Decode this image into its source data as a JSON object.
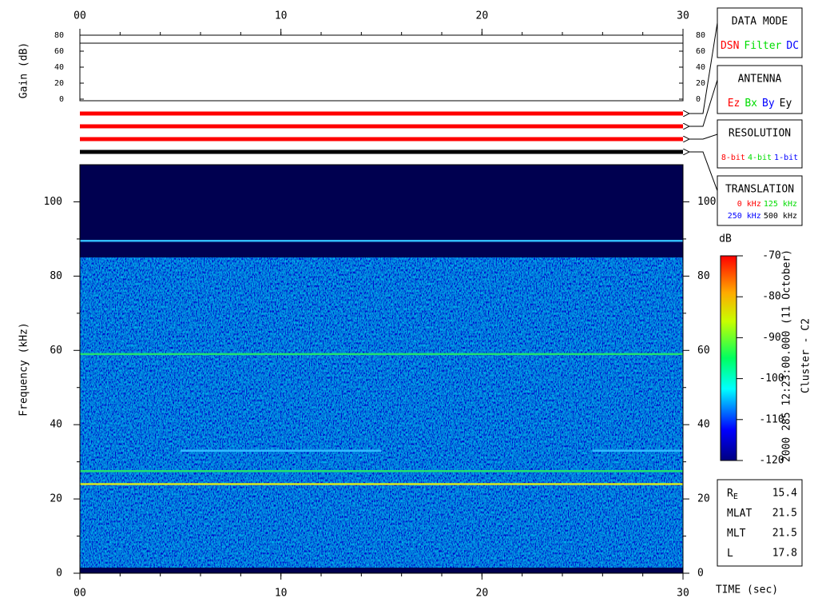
{
  "chart_data": [
    {
      "type": "line",
      "ylabel": "Gain (dB)",
      "xlim": [
        0,
        30
      ],
      "xticks": [
        {
          "value": 0,
          "label": "00"
        },
        10,
        20,
        30
      ],
      "ylim": [
        0,
        80
      ],
      "yticks": [
        0,
        20,
        40,
        60,
        80
      ],
      "series": [
        {
          "color": "#000000",
          "x": [
            0,
            30
          ],
          "values": [
            70,
            70
          ]
        }
      ]
    },
    {
      "type": "status-bars",
      "colors": [
        "#ff0000",
        "#ff0000",
        "#ff0000",
        "#000000"
      ]
    },
    {
      "type": "spectrogram",
      "xlabel": "TIME (sec)",
      "ylabel": "Frequency (kHz)",
      "xlim": [
        0,
        30
      ],
      "xticks": [
        {
          "value": 0,
          "label": "00"
        },
        10,
        20,
        30
      ],
      "ylim": [
        0,
        110
      ],
      "yticks": [
        0,
        20,
        40,
        60,
        80,
        100
      ],
      "lines": [
        {
          "y": 89.5,
          "color": "#33bbff",
          "x": [
            0,
            30
          ]
        },
        {
          "y": 59,
          "color": "#22e070",
          "x": [
            0,
            30
          ]
        },
        {
          "y": 33,
          "color": "#33bbff",
          "x": [
            5,
            15
          ]
        },
        {
          "y": 33,
          "color": "#33bbff",
          "x": [
            25.5,
            30
          ]
        },
        {
          "y": 27.5,
          "color": "#22e070",
          "x": [
            0,
            30
          ]
        },
        {
          "y": 24,
          "color": "#d8e820",
          "x": [
            0,
            30
          ]
        }
      ]
    },
    {
      "type": "colorbar",
      "label": "dB",
      "ylim": [
        -120,
        -70
      ],
      "yticks": [
        -120,
        -110,
        -100,
        -90,
        -80,
        -70
      ]
    }
  ],
  "legend_boxes": [
    {
      "title": "DATA MODE",
      "items": [
        {
          "text": "DSN",
          "color": "#ff0000"
        },
        {
          "text": "Filter",
          "color": "#00dd00"
        },
        {
          "text": "DC",
          "color": "#0000ff"
        }
      ]
    },
    {
      "title": "ANTENNA",
      "items": [
        {
          "text": "Ez",
          "color": "#ff0000"
        },
        {
          "text": "Bx",
          "color": "#00dd00"
        },
        {
          "text": "By",
          "color": "#0000ff"
        },
        {
          "text": "Ey",
          "color": "#000000"
        }
      ]
    },
    {
      "title": "RESOLUTION",
      "items": [
        {
          "text": "8-bit",
          "color": "#ff0000"
        },
        {
          "text": "4-bit",
          "color": "#00dd00"
        },
        {
          "text": "1-bit",
          "color": "#0000ff"
        }
      ]
    },
    {
      "title": "TRANSLATION",
      "items": [
        {
          "text": "0 kHz",
          "color": "#ff0000"
        },
        {
          "text": "125 kHz",
          "color": "#00dd00"
        },
        {
          "text": "250 kHz",
          "color": "#0000ff"
        },
        {
          "text": "500 kHz",
          "color": "#000000"
        }
      ]
    }
  ],
  "side_labels": [
    "2000 285 12:23:00.000 (11 October)",
    "Cluster - C2"
  ],
  "info": [
    {
      "label": "R",
      "sub": "E",
      "value": "15.4"
    },
    {
      "label": "MLAT",
      "value": "21.5"
    },
    {
      "label": "MLT",
      "value": "21.5"
    },
    {
      "label": "L",
      "value": "17.8"
    }
  ]
}
